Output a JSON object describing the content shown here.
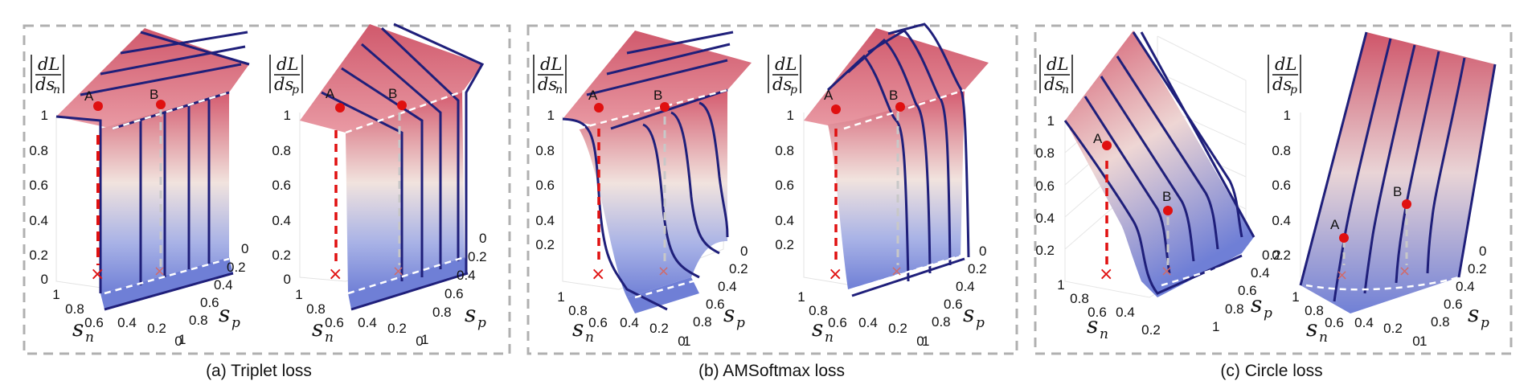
{
  "groups": [
    {
      "caption": "(a) Triplet loss",
      "plots": [
        {
          "ylabel": {
            "num": "dL",
            "den": "ds",
            "sub": "n"
          },
          "points": [
            "A",
            "B"
          ]
        },
        {
          "ylabel": {
            "num": "dL",
            "den": "ds",
            "sub": "p"
          },
          "points": [
            "A",
            "B"
          ]
        }
      ]
    },
    {
      "caption": "(b) AMSoftmax loss",
      "plots": [
        {
          "ylabel": {
            "num": "dL",
            "den": "ds",
            "sub": "n"
          },
          "points": [
            "A",
            "B"
          ]
        },
        {
          "ylabel": {
            "num": "dL",
            "den": "ds",
            "sub": "p"
          },
          "points": [
            "A",
            "B"
          ]
        }
      ]
    },
    {
      "caption": "(c) Circle loss",
      "plots": [
        {
          "ylabel": {
            "num": "dL",
            "den": "ds",
            "sub": "n"
          },
          "points": [
            "A",
            "B"
          ]
        },
        {
          "ylabel": {
            "num": "dL",
            "den": "ds",
            "sub": "p"
          },
          "points": [
            "A",
            "B"
          ]
        }
      ]
    }
  ],
  "axes": {
    "z_ticks": [
      "1",
      "0.8",
      "0.6",
      "0.4",
      "0.2",
      "0"
    ],
    "z_ticks_no_zero": [
      "1",
      "0.8",
      "0.6",
      "0.4",
      "0.2"
    ],
    "sn_ticks": [
      "1",
      "0.8",
      "0.6",
      "0.4",
      "0.2",
      "0"
    ],
    "sn_ticks_short": [
      "1",
      "0.8",
      "0.6",
      "0.4",
      "0.2"
    ],
    "sp_ticks": [
      "0",
      "0.2",
      "0.4",
      "0.6",
      "0.8",
      "1"
    ],
    "sn_label": "s",
    "sn_sub": "n",
    "sp_label": "s",
    "sp_sub": "p"
  },
  "colors": {
    "surface_top": "#d45a6e",
    "surface_mid": "#f1e1dc",
    "surface_bottom": "#6f7fd6",
    "curve": "#1f1f7a",
    "marker": "#e01010",
    "frame": "#b0b0b0"
  }
}
